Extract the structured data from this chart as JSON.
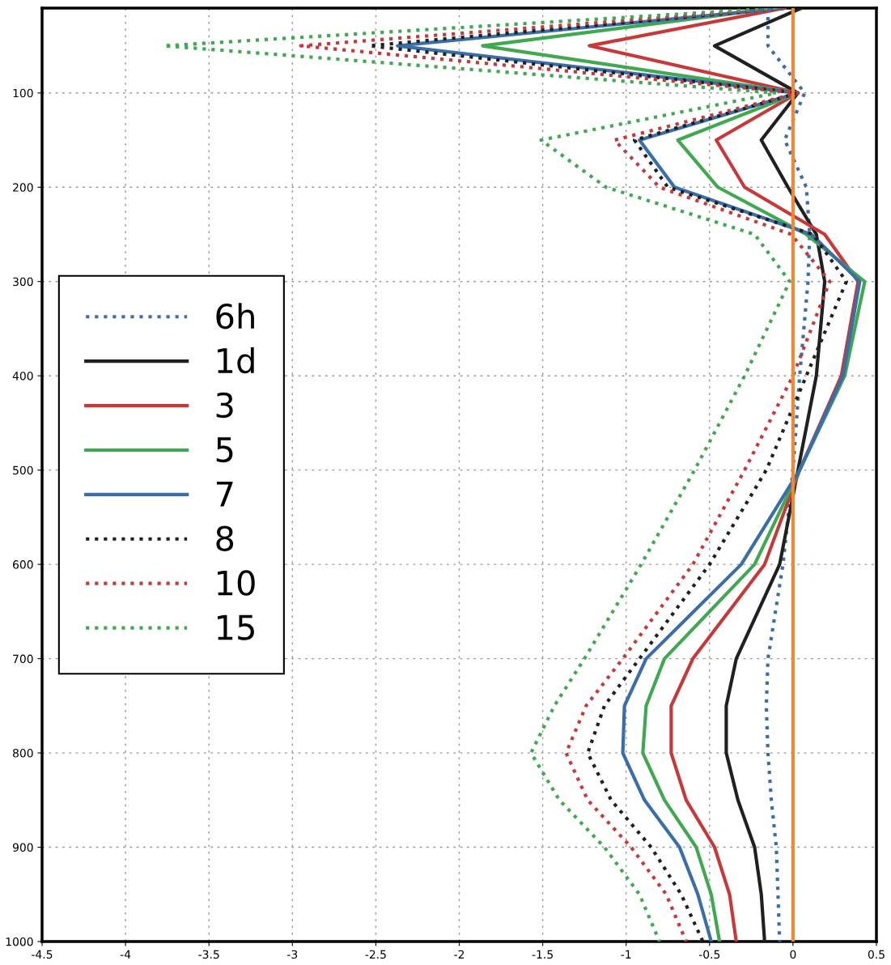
{
  "chart_data": {
    "type": "line",
    "xlim": [
      -4.5,
      0.5
    ],
    "xticks": [
      -4.5,
      -4,
      -3.5,
      -3,
      -2.5,
      -2,
      -1.5,
      -1,
      -0.5,
      0,
      0.5
    ],
    "ylim": [
      1000,
      10
    ],
    "yticks": [
      100,
      200,
      300,
      400,
      500,
      600,
      700,
      800,
      900,
      1000
    ],
    "grid": true,
    "legend": "left",
    "ref_lines": [
      {
        "axis": "x",
        "value": 0,
        "color": "#f08838"
      }
    ],
    "series": [
      {
        "name": "6h",
        "color": "#3a6ea8",
        "line_style": "dotted",
        "x": [
          -0.15,
          -0.15,
          0.07,
          -0.05,
          0.08,
          0.1,
          0.09,
          0.04,
          0.0,
          -0.06,
          -0.15,
          -0.16,
          -0.15,
          -0.13,
          -0.1,
          -0.09,
          -0.08
        ],
        "values": [
          10,
          50,
          100,
          150,
          200,
          250,
          300,
          400,
          500,
          600,
          700,
          750,
          800,
          850,
          900,
          950,
          1000
        ]
      },
      {
        "name": "1d",
        "color": "#202020",
        "line_style": "solid",
        "x": [
          0.05,
          -0.47,
          0.03,
          -0.19,
          -0.03,
          0.14,
          0.19,
          0.14,
          0.03,
          -0.08,
          -0.34,
          -0.4,
          -0.4,
          -0.33,
          -0.23,
          -0.19,
          -0.17
        ],
        "values": [
          10,
          50,
          100,
          150,
          200,
          250,
          300,
          400,
          500,
          600,
          700,
          750,
          800,
          850,
          900,
          950,
          1000
        ]
      },
      {
        "name": "3",
        "color": "#c83838",
        "line_style": "solid",
        "x": [
          -0.05,
          -1.22,
          0.03,
          -0.46,
          -0.29,
          0.19,
          0.39,
          0.29,
          0.04,
          -0.17,
          -0.6,
          -0.73,
          -0.73,
          -0.64,
          -0.47,
          -0.38,
          -0.34
        ],
        "values": [
          10,
          50,
          100,
          150,
          200,
          250,
          300,
          400,
          500,
          600,
          700,
          750,
          800,
          850,
          900,
          950,
          1000
        ]
      },
      {
        "name": "5",
        "color": "#40a850",
        "line_style": "solid",
        "x": [
          -0.1,
          -1.86,
          0.03,
          -0.69,
          -0.45,
          0.08,
          0.43,
          0.31,
          0.04,
          -0.23,
          -0.77,
          -0.88,
          -0.9,
          -0.77,
          -0.58,
          -0.49,
          -0.44
        ],
        "values": [
          10,
          50,
          100,
          150,
          200,
          250,
          300,
          400,
          500,
          600,
          700,
          750,
          800,
          850,
          900,
          950,
          1000
        ]
      },
      {
        "name": "7",
        "color": "#3a6ea8",
        "line_style": "solid",
        "x": [
          -0.05,
          -2.37,
          0.03,
          -0.92,
          -0.71,
          0.11,
          0.4,
          0.3,
          0.04,
          -0.31,
          -0.88,
          -1.01,
          -1.02,
          -0.89,
          -0.68,
          -0.57,
          -0.49
        ],
        "values": [
          10,
          50,
          100,
          150,
          200,
          250,
          300,
          400,
          500,
          600,
          700,
          750,
          800,
          850,
          900,
          950,
          1000
        ]
      },
      {
        "name": "8",
        "color": "#202020",
        "line_style": "dotted",
        "x": [
          -0.05,
          -2.54,
          0.03,
          -0.95,
          -0.75,
          0.12,
          0.32,
          0.08,
          -0.16,
          -0.5,
          -0.92,
          -1.13,
          -1.23,
          -1.09,
          -0.85,
          -0.67,
          -0.54
        ],
        "values": [
          10,
          50,
          100,
          150,
          200,
          250,
          300,
          400,
          500,
          600,
          700,
          750,
          800,
          850,
          900,
          950,
          1000
        ]
      },
      {
        "name": "10",
        "color": "#c83838",
        "line_style": "dotted",
        "x": [
          -0.05,
          -2.95,
          0.03,
          -1.07,
          -0.8,
          -0.01,
          0.22,
          0.0,
          -0.29,
          -0.6,
          -1.02,
          -1.24,
          -1.36,
          -1.23,
          -0.97,
          -0.76,
          -0.64
        ],
        "values": [
          10,
          50,
          100,
          150,
          200,
          250,
          300,
          400,
          500,
          600,
          700,
          750,
          800,
          850,
          900,
          950,
          1000
        ]
      },
      {
        "name": "15",
        "color": "#40a850",
        "line_style": "dotted",
        "x": [
          -0.1,
          -3.77,
          -0.1,
          -1.51,
          -1.12,
          -0.23,
          -0.02,
          -0.29,
          -0.59,
          -0.91,
          -1.25,
          -1.43,
          -1.57,
          -1.4,
          -1.13,
          -0.92,
          -0.8
        ],
        "values": [
          10,
          50,
          100,
          150,
          200,
          250,
          300,
          400,
          500,
          600,
          700,
          750,
          800,
          850,
          900,
          950,
          1000
        ]
      }
    ]
  }
}
